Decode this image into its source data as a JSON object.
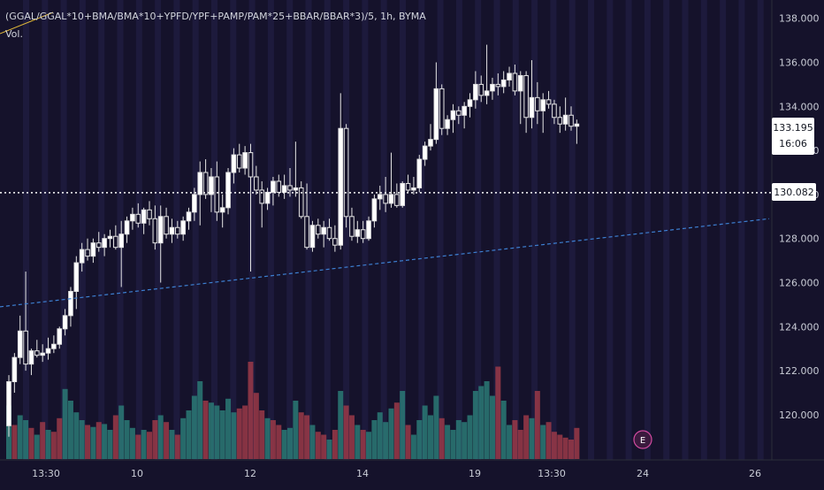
{
  "chart_data": {
    "type": "candlestick",
    "title": "(GGAL/GGAL*10+BMA/BMA*10+YPFD/YPF+PAMP/PAM*25+BBAR/BBAR*3)/5, 1h, BYMA",
    "volume_label": "Vol.",
    "y_ticks": [
      "138.000",
      "136.000",
      "134.000",
      "132.000",
      "130.000",
      "128.000",
      "126.000",
      "124.000",
      "122.000",
      "120.000"
    ],
    "ylim": [
      118.0,
      139.0
    ],
    "x_ticks": [
      "13:30",
      "10",
      "12",
      "14",
      "19",
      "13:30",
      "24",
      "26"
    ],
    "last_price": "133.195",
    "countdown": "16:06",
    "crosshair_price": "130.082",
    "trendline_start": 124.9,
    "trendline_end": 128.9,
    "earnings_marker": "E",
    "candles": [
      {
        "o": 119.5,
        "h": 121.8,
        "l": 119.0,
        "c": 121.5,
        "v": 0.55,
        "up": true
      },
      {
        "o": 121.5,
        "h": 122.8,
        "l": 121.0,
        "c": 122.6,
        "v": 0.35,
        "up": false
      },
      {
        "o": 122.6,
        "h": 124.5,
        "l": 122.3,
        "c": 123.8,
        "v": 0.45,
        "up": true
      },
      {
        "o": 123.8,
        "h": 126.5,
        "l": 122.0,
        "c": 122.3,
        "v": 0.4,
        "up": true
      },
      {
        "o": 122.3,
        "h": 123.0,
        "l": 121.8,
        "c": 122.9,
        "v": 0.32,
        "up": false
      },
      {
        "o": 122.9,
        "h": 123.4,
        "l": 122.6,
        "c": 122.7,
        "v": 0.25,
        "up": true
      },
      {
        "o": 122.7,
        "h": 123.2,
        "l": 122.4,
        "c": 122.8,
        "v": 0.38,
        "up": false
      },
      {
        "o": 122.8,
        "h": 123.5,
        "l": 122.5,
        "c": 123.0,
        "v": 0.3,
        "up": true
      },
      {
        "o": 123.0,
        "h": 123.6,
        "l": 122.8,
        "c": 123.2,
        "v": 0.28,
        "up": false
      },
      {
        "o": 123.2,
        "h": 124.0,
        "l": 123.0,
        "c": 123.9,
        "v": 0.42,
        "up": false
      },
      {
        "o": 123.9,
        "h": 124.8,
        "l": 123.6,
        "c": 124.5,
        "v": 0.72,
        "up": true
      },
      {
        "o": 124.5,
        "h": 125.8,
        "l": 124.0,
        "c": 125.6,
        "v": 0.6,
        "up": true
      },
      {
        "o": 125.6,
        "h": 127.2,
        "l": 124.8,
        "c": 126.9,
        "v": 0.48,
        "up": true
      },
      {
        "o": 126.9,
        "h": 127.8,
        "l": 126.5,
        "c": 127.5,
        "v": 0.4,
        "up": true
      },
      {
        "o": 127.5,
        "h": 128.0,
        "l": 127.0,
        "c": 127.2,
        "v": 0.35,
        "up": false
      },
      {
        "o": 127.2,
        "h": 128.0,
        "l": 126.9,
        "c": 127.8,
        "v": 0.33,
        "up": true
      },
      {
        "o": 127.8,
        "h": 128.3,
        "l": 127.4,
        "c": 127.6,
        "v": 0.38,
        "up": false
      },
      {
        "o": 127.6,
        "h": 128.2,
        "l": 127.2,
        "c": 128.0,
        "v": 0.36,
        "up": true
      },
      {
        "o": 128.0,
        "h": 128.4,
        "l": 127.6,
        "c": 128.1,
        "v": 0.3,
        "up": true
      },
      {
        "o": 128.1,
        "h": 128.6,
        "l": 127.5,
        "c": 127.6,
        "v": 0.45,
        "up": false
      },
      {
        "o": 127.6,
        "h": 128.8,
        "l": 125.8,
        "c": 128.2,
        "v": 0.55,
        "up": true
      },
      {
        "o": 128.2,
        "h": 129.0,
        "l": 127.8,
        "c": 128.8,
        "v": 0.4,
        "up": true
      },
      {
        "o": 128.8,
        "h": 129.4,
        "l": 128.4,
        "c": 129.1,
        "v": 0.32,
        "up": true
      },
      {
        "o": 129.1,
        "h": 129.6,
        "l": 128.5,
        "c": 128.7,
        "v": 0.25,
        "up": false
      },
      {
        "o": 128.7,
        "h": 129.4,
        "l": 128.2,
        "c": 129.3,
        "v": 0.3,
        "up": true
      },
      {
        "o": 129.3,
        "h": 129.7,
        "l": 128.6,
        "c": 128.9,
        "v": 0.28,
        "up": false
      },
      {
        "o": 128.9,
        "h": 129.5,
        "l": 127.5,
        "c": 127.8,
        "v": 0.4,
        "up": false
      },
      {
        "o": 127.8,
        "h": 129.5,
        "l": 126.0,
        "c": 129.0,
        "v": 0.45,
        "up": true
      },
      {
        "o": 129.0,
        "h": 129.4,
        "l": 128.0,
        "c": 128.2,
        "v": 0.38,
        "up": false
      },
      {
        "o": 128.2,
        "h": 128.9,
        "l": 127.8,
        "c": 128.5,
        "v": 0.3,
        "up": true
      },
      {
        "o": 128.5,
        "h": 128.8,
        "l": 128.0,
        "c": 128.2,
        "v": 0.25,
        "up": false
      },
      {
        "o": 128.2,
        "h": 129.0,
        "l": 127.9,
        "c": 128.8,
        "v": 0.42,
        "up": true
      },
      {
        "o": 128.8,
        "h": 129.4,
        "l": 128.4,
        "c": 129.2,
        "v": 0.5,
        "up": true
      },
      {
        "o": 129.2,
        "h": 130.3,
        "l": 128.8,
        "c": 130.0,
        "v": 0.65,
        "up": true
      },
      {
        "o": 130.0,
        "h": 131.5,
        "l": 128.6,
        "c": 131.0,
        "v": 0.8,
        "up": true
      },
      {
        "o": 131.0,
        "h": 131.6,
        "l": 129.8,
        "c": 130.0,
        "v": 0.6,
        "up": false
      },
      {
        "o": 130.0,
        "h": 131.2,
        "l": 129.2,
        "c": 130.8,
        "v": 0.58,
        "up": true
      },
      {
        "o": 130.8,
        "h": 131.5,
        "l": 128.8,
        "c": 129.2,
        "v": 0.55,
        "up": true
      },
      {
        "o": 129.2,
        "h": 130.0,
        "l": 128.5,
        "c": 129.4,
        "v": 0.5,
        "up": true
      },
      {
        "o": 129.4,
        "h": 131.2,
        "l": 129.1,
        "c": 131.0,
        "v": 0.62,
        "up": true
      },
      {
        "o": 131.0,
        "h": 132.1,
        "l": 130.5,
        "c": 131.8,
        "v": 0.48,
        "up": true
      },
      {
        "o": 131.8,
        "h": 132.3,
        "l": 131.0,
        "c": 131.2,
        "v": 0.52,
        "up": false
      },
      {
        "o": 131.2,
        "h": 132.2,
        "l": 130.9,
        "c": 131.9,
        "v": 0.55,
        "up": false
      },
      {
        "o": 131.9,
        "h": 132.3,
        "l": 126.5,
        "c": 130.8,
        "v": 1.0,
        "up": false
      },
      {
        "o": 130.8,
        "h": 131.3,
        "l": 130.0,
        "c": 130.2,
        "v": 0.68,
        "up": false
      },
      {
        "o": 130.2,
        "h": 130.6,
        "l": 128.5,
        "c": 129.6,
        "v": 0.5,
        "up": false
      },
      {
        "o": 129.6,
        "h": 130.3,
        "l": 129.3,
        "c": 130.1,
        "v": 0.42,
        "up": true
      },
      {
        "o": 130.1,
        "h": 130.8,
        "l": 129.5,
        "c": 130.6,
        "v": 0.4,
        "up": false
      },
      {
        "o": 130.6,
        "h": 130.9,
        "l": 129.9,
        "c": 130.1,
        "v": 0.35,
        "up": false
      },
      {
        "o": 130.1,
        "h": 130.9,
        "l": 129.8,
        "c": 130.4,
        "v": 0.3,
        "up": true
      },
      {
        "o": 130.4,
        "h": 131.2,
        "l": 129.9,
        "c": 130.2,
        "v": 0.32,
        "up": true
      },
      {
        "o": 130.2,
        "h": 132.4,
        "l": 129.9,
        "c": 130.3,
        "v": 0.6,
        "up": true
      },
      {
        "o": 130.3,
        "h": 130.6,
        "l": 128.9,
        "c": 129.0,
        "v": 0.48,
        "up": false
      },
      {
        "o": 129.0,
        "h": 130.5,
        "l": 127.5,
        "c": 127.6,
        "v": 0.45,
        "up": false
      },
      {
        "o": 127.6,
        "h": 128.8,
        "l": 127.4,
        "c": 128.6,
        "v": 0.35,
        "up": true
      },
      {
        "o": 128.6,
        "h": 128.9,
        "l": 128.0,
        "c": 128.2,
        "v": 0.28,
        "up": false
      },
      {
        "o": 128.2,
        "h": 128.8,
        "l": 127.6,
        "c": 128.5,
        "v": 0.25,
        "up": false
      },
      {
        "o": 128.5,
        "h": 128.9,
        "l": 127.9,
        "c": 128.0,
        "v": 0.2,
        "up": true
      },
      {
        "o": 128.0,
        "h": 128.6,
        "l": 127.4,
        "c": 127.7,
        "v": 0.3,
        "up": false
      },
      {
        "o": 127.7,
        "h": 134.6,
        "l": 127.5,
        "c": 133.0,
        "v": 0.7,
        "up": true
      },
      {
        "o": 133.0,
        "h": 133.2,
        "l": 128.5,
        "c": 129.0,
        "v": 0.55,
        "up": false
      },
      {
        "o": 129.0,
        "h": 129.4,
        "l": 127.9,
        "c": 128.1,
        "v": 0.45,
        "up": false
      },
      {
        "o": 128.1,
        "h": 128.8,
        "l": 127.8,
        "c": 128.4,
        "v": 0.35,
        "up": true
      },
      {
        "o": 128.4,
        "h": 128.8,
        "l": 127.8,
        "c": 128.0,
        "v": 0.3,
        "up": false
      },
      {
        "o": 128.0,
        "h": 129.0,
        "l": 127.9,
        "c": 128.8,
        "v": 0.28,
        "up": true
      },
      {
        "o": 128.8,
        "h": 130.0,
        "l": 128.5,
        "c": 129.8,
        "v": 0.4,
        "up": true
      },
      {
        "o": 129.8,
        "h": 130.4,
        "l": 129.3,
        "c": 130.0,
        "v": 0.48,
        "up": true
      },
      {
        "o": 130.0,
        "h": 130.8,
        "l": 129.2,
        "c": 129.6,
        "v": 0.38,
        "up": true
      },
      {
        "o": 129.6,
        "h": 131.9,
        "l": 129.4,
        "c": 130.0,
        "v": 0.52,
        "up": true
      },
      {
        "o": 130.0,
        "h": 130.5,
        "l": 129.4,
        "c": 129.5,
        "v": 0.58,
        "up": false
      },
      {
        "o": 129.5,
        "h": 130.6,
        "l": 129.4,
        "c": 130.5,
        "v": 0.7,
        "up": true
      },
      {
        "o": 130.5,
        "h": 130.9,
        "l": 130.1,
        "c": 130.2,
        "v": 0.35,
        "up": false
      },
      {
        "o": 130.2,
        "h": 130.8,
        "l": 130.0,
        "c": 130.3,
        "v": 0.25,
        "up": true
      },
      {
        "o": 130.3,
        "h": 131.8,
        "l": 130.1,
        "c": 131.6,
        "v": 0.4,
        "up": true
      },
      {
        "o": 131.6,
        "h": 132.4,
        "l": 131.3,
        "c": 132.2,
        "v": 0.55,
        "up": true
      },
      {
        "o": 132.2,
        "h": 133.2,
        "l": 132.0,
        "c": 132.5,
        "v": 0.45,
        "up": true
      },
      {
        "o": 132.5,
        "h": 136.0,
        "l": 132.3,
        "c": 134.8,
        "v": 0.65,
        "up": true
      },
      {
        "o": 134.8,
        "h": 135.0,
        "l": 132.7,
        "c": 133.0,
        "v": 0.42,
        "up": false
      },
      {
        "o": 133.0,
        "h": 133.6,
        "l": 132.7,
        "c": 133.4,
        "v": 0.35,
        "up": true
      },
      {
        "o": 133.4,
        "h": 134.1,
        "l": 132.8,
        "c": 133.8,
        "v": 0.3,
        "up": true
      },
      {
        "o": 133.8,
        "h": 134.0,
        "l": 133.2,
        "c": 133.6,
        "v": 0.4,
        "up": true
      },
      {
        "o": 133.6,
        "h": 134.2,
        "l": 133.0,
        "c": 134.0,
        "v": 0.38,
        "up": true
      },
      {
        "o": 134.0,
        "h": 134.6,
        "l": 133.5,
        "c": 134.3,
        "v": 0.45,
        "up": true
      },
      {
        "o": 134.3,
        "h": 135.6,
        "l": 133.9,
        "c": 135.0,
        "v": 0.7,
        "up": true
      },
      {
        "o": 135.0,
        "h": 135.4,
        "l": 134.2,
        "c": 134.5,
        "v": 0.75,
        "up": true
      },
      {
        "o": 134.5,
        "h": 136.8,
        "l": 134.1,
        "c": 134.7,
        "v": 0.8,
        "up": true
      },
      {
        "o": 134.7,
        "h": 135.3,
        "l": 134.3,
        "c": 135.0,
        "v": 0.65,
        "up": true
      },
      {
        "o": 135.0,
        "h": 135.5,
        "l": 134.5,
        "c": 134.9,
        "v": 0.95,
        "up": false
      },
      {
        "o": 134.9,
        "h": 135.6,
        "l": 134.6,
        "c": 135.2,
        "v": 0.6,
        "up": true
      },
      {
        "o": 135.2,
        "h": 135.8,
        "l": 134.9,
        "c": 135.5,
        "v": 0.35,
        "up": true
      },
      {
        "o": 135.5,
        "h": 135.9,
        "l": 134.5,
        "c": 134.7,
        "v": 0.4,
        "up": false
      },
      {
        "o": 134.7,
        "h": 135.6,
        "l": 133.2,
        "c": 135.4,
        "v": 0.3,
        "up": false
      },
      {
        "o": 135.4,
        "h": 135.6,
        "l": 132.8,
        "c": 133.5,
        "v": 0.45,
        "up": false
      },
      {
        "o": 133.5,
        "h": 136.1,
        "l": 133.0,
        "c": 134.4,
        "v": 0.42,
        "up": true
      },
      {
        "o": 134.4,
        "h": 135.1,
        "l": 133.2,
        "c": 133.8,
        "v": 0.7,
        "up": false
      },
      {
        "o": 133.8,
        "h": 134.6,
        "l": 132.8,
        "c": 134.3,
        "v": 0.35,
        "up": true
      },
      {
        "o": 134.3,
        "h": 134.7,
        "l": 133.9,
        "c": 134.1,
        "v": 0.38,
        "up": false
      },
      {
        "o": 134.1,
        "h": 134.3,
        "l": 133.2,
        "c": 133.5,
        "v": 0.28,
        "up": false
      },
      {
        "o": 133.5,
        "h": 134.0,
        "l": 132.8,
        "c": 133.2,
        "v": 0.25,
        "up": false
      },
      {
        "o": 133.2,
        "h": 134.4,
        "l": 132.9,
        "c": 133.6,
        "v": 0.22,
        "up": false
      },
      {
        "o": 133.6,
        "h": 134.0,
        "l": 132.9,
        "c": 133.1,
        "v": 0.2,
        "up": false
      },
      {
        "o": 133.1,
        "h": 133.4,
        "l": 132.3,
        "c": 133.2,
        "v": 0.32,
        "up": false
      }
    ]
  }
}
